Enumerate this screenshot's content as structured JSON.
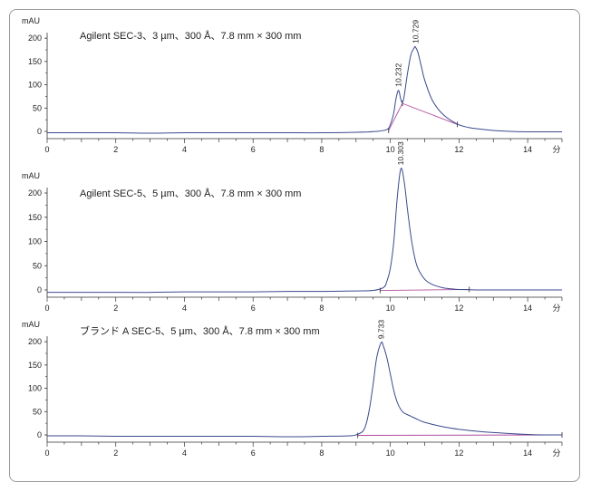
{
  "chart_data": [
    {
      "type": "line",
      "title": "Agilent SEC-3、3 µm、300 Å、7.8 mm × 300 mm",
      "ylabel": "mAU",
      "xlabel": "分",
      "xlim": [
        0,
        15
      ],
      "ylim": [
        -10,
        235
      ],
      "x_ticks": [
        0,
        2,
        4,
        6,
        8,
        10,
        12,
        14
      ],
      "y_ticks": [
        0,
        50,
        100,
        150,
        200
      ],
      "series": [
        {
          "color": "#3b4a8c",
          "x": [
            0,
            1,
            2,
            3,
            4,
            5,
            6,
            7,
            8,
            9,
            9.6,
            9.9,
            10.0,
            10.1,
            10.15,
            10.2,
            10.232,
            10.26,
            10.3,
            10.35,
            10.4,
            10.5,
            10.6,
            10.7,
            10.729,
            10.8,
            10.9,
            11.0,
            11.2,
            11.4,
            11.6,
            11.8,
            12.0,
            12.3,
            12.6,
            13.0,
            13.5,
            14.0,
            14.5,
            15.0
          ],
          "y": [
            -3,
            -3,
            -3,
            -4,
            -3,
            -3,
            -3,
            -3,
            -3,
            -2,
            0,
            4,
            15,
            40,
            65,
            82,
            88,
            84,
            70,
            62,
            75,
            125,
            165,
            180,
            181,
            170,
            140,
            110,
            70,
            47,
            32,
            22,
            14,
            8,
            5,
            2,
            0,
            -1,
            -1,
            -1
          ]
        }
      ],
      "baselines": [
        {
          "color": "#b04fa0",
          "x": [
            9.95,
            10.35,
            11.95
          ],
          "y": [
            2,
            60,
            15
          ]
        }
      ],
      "peak_labels": [
        {
          "x": 10.232,
          "y": 88,
          "text": "10.232"
        },
        {
          "x": 10.729,
          "y": 181,
          "text": "10.729"
        }
      ]
    },
    {
      "type": "line",
      "title": "Agilent SEC-5、5 µm、300 Å、7.8 mm × 300 mm",
      "ylabel": "mAU",
      "xlabel": "分",
      "xlim": [
        0,
        15
      ],
      "ylim": [
        -10,
        265
      ],
      "x_ticks": [
        0,
        2,
        4,
        6,
        8,
        10,
        12,
        14
      ],
      "y_ticks": [
        0,
        50,
        100,
        150,
        200
      ],
      "series": [
        {
          "color": "#3b4a8c",
          "x": [
            0,
            1,
            2,
            3,
            4,
            5,
            6,
            7,
            8,
            9,
            9.5,
            9.8,
            9.9,
            10.0,
            10.1,
            10.2,
            10.303,
            10.4,
            10.5,
            10.6,
            10.7,
            10.8,
            11.0,
            11.2,
            11.5,
            11.8,
            12.0,
            12.5,
            13.0,
            14.0,
            15.0
          ],
          "y": [
            -5,
            -5,
            -5,
            -5,
            -4,
            -4,
            -4,
            -3,
            -3,
            -2,
            -1,
            5,
            18,
            45,
            100,
            190,
            250,
            225,
            165,
            110,
            70,
            45,
            22,
            12,
            5,
            2,
            1,
            0,
            0,
            0,
            0
          ]
        }
      ],
      "baselines": [
        {
          "color": "#b04fa0",
          "x": [
            9.7,
            12.3
          ],
          "y": [
            -1,
            1
          ]
        }
      ],
      "peak_labels": [
        {
          "x": 10.303,
          "y": 250,
          "text": "10.303"
        }
      ]
    },
    {
      "type": "line",
      "title": "ブランド A SEC-5、5 µm、300 Å、7.8 mm × 300 mm",
      "ylabel": "mAU",
      "xlabel": "分",
      "xlim": [
        0,
        15
      ],
      "ylim": [
        -10,
        240
      ],
      "x_ticks": [
        0,
        2,
        4,
        6,
        8,
        10,
        12,
        14
      ],
      "y_ticks": [
        0,
        50,
        100,
        150,
        200
      ],
      "series": [
        {
          "color": "#3b4a8c",
          "x": [
            0,
            1,
            2,
            3,
            4,
            5,
            6,
            7,
            8,
            8.8,
            9.0,
            9.2,
            9.3,
            9.4,
            9.5,
            9.6,
            9.733,
            9.8,
            9.9,
            10.0,
            10.1,
            10.2,
            10.3,
            10.4,
            10.6,
            10.8,
            11.0,
            11.5,
            12.0,
            12.5,
            13.0,
            13.5,
            14.0,
            14.5,
            15.0
          ],
          "y": [
            -2,
            -2,
            -3,
            -3,
            -3,
            -3,
            -3,
            -4,
            -3,
            -2,
            0,
            8,
            25,
            60,
            110,
            165,
            198,
            190,
            165,
            130,
            95,
            70,
            55,
            47,
            40,
            33,
            27,
            18,
            12,
            8,
            5,
            3,
            1,
            0,
            0
          ]
        }
      ],
      "baselines": [
        {
          "color": "#b04fa0",
          "x": [
            9.05,
            15.0
          ],
          "y": [
            -1,
            0
          ]
        }
      ],
      "peak_labels": [
        {
          "x": 9.733,
          "y": 198,
          "text": "9.733"
        }
      ]
    }
  ]
}
